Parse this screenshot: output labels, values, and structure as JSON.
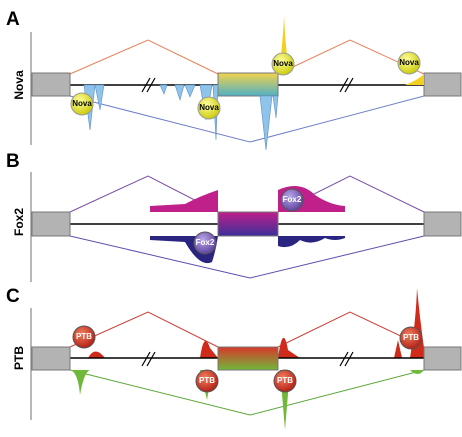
{
  "panels": [
    {
      "letter": "A",
      "label": "Nova",
      "sites": [
        "Nova",
        "Nova",
        "Nova",
        "Nova"
      ]
    },
    {
      "letter": "B",
      "label": "Fox2",
      "sites": [
        "Fox2",
        "Fox2"
      ]
    },
    {
      "letter": "C",
      "label": "PTB",
      "sites": [
        "PTB",
        "PTB",
        "PTB",
        "PTB"
      ]
    }
  ]
}
